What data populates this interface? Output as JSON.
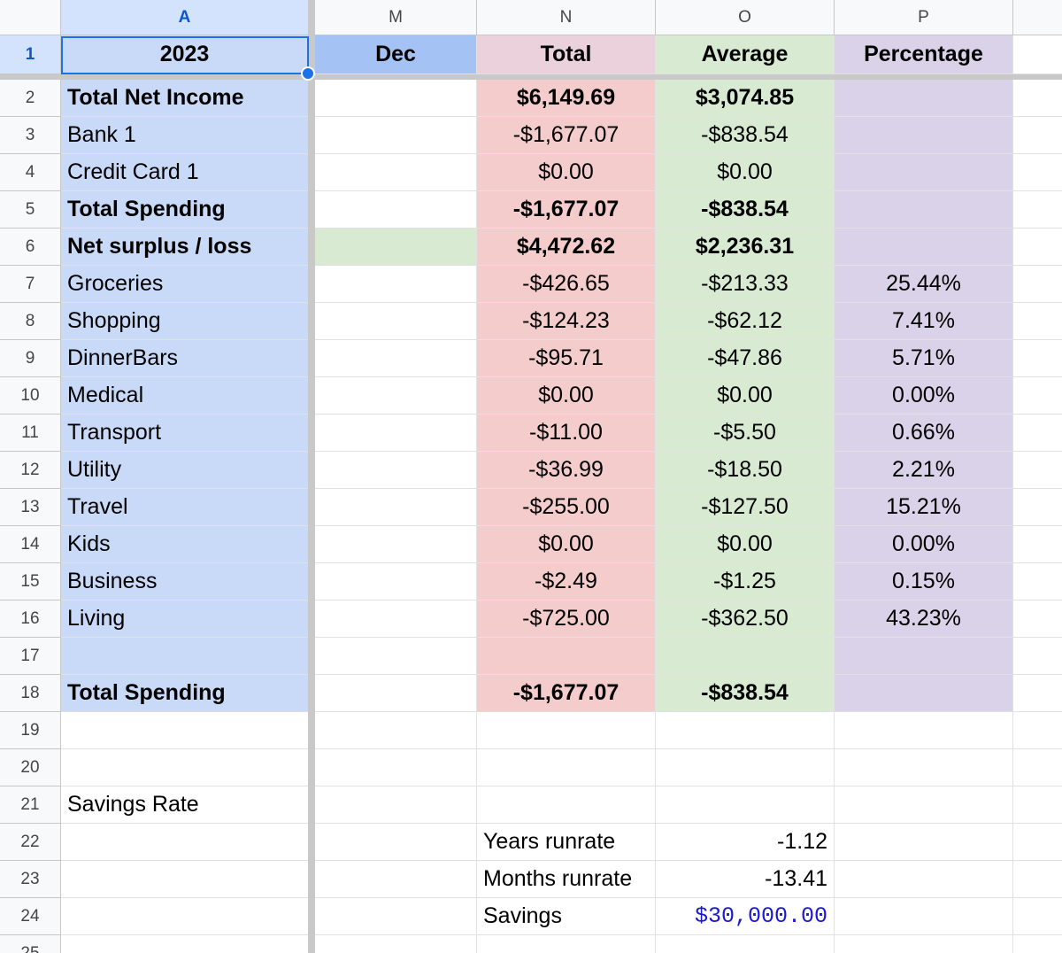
{
  "columns": [
    "A",
    "M",
    "N",
    "O",
    "P"
  ],
  "header_row": {
    "a": "2023",
    "m": "Dec",
    "n": "Total",
    "o": "Average",
    "p": "Percentage"
  },
  "rows": [
    {
      "n": "2",
      "a": "Total Net Income",
      "nn": "$6,149.69",
      "o": "$3,074.85",
      "p": "",
      "bold": true
    },
    {
      "n": "3",
      "a": "Bank 1",
      "nn": "-$1,677.07",
      "o": "-$838.54",
      "p": ""
    },
    {
      "n": "4",
      "a": "Credit Card 1",
      "nn": "$0.00",
      "o": "$0.00",
      "p": ""
    },
    {
      "n": "5",
      "a": "Total Spending",
      "nn": "-$1,677.07",
      "o": "-$838.54",
      "p": "",
      "bold": true
    },
    {
      "n": "6",
      "a": "Net surplus / loss",
      "nn": "$4,472.62",
      "o": "$2,236.31",
      "p": "",
      "bold": true
    },
    {
      "n": "7",
      "a": "Groceries",
      "nn": "-$426.65",
      "o": "-$213.33",
      "p": "25.44%"
    },
    {
      "n": "8",
      "a": "Shopping",
      "nn": "-$124.23",
      "o": "-$62.12",
      "p": "7.41%"
    },
    {
      "n": "9",
      "a": "DinnerBars",
      "nn": "-$95.71",
      "o": "-$47.86",
      "p": "5.71%"
    },
    {
      "n": "10",
      "a": "Medical",
      "nn": "$0.00",
      "o": "$0.00",
      "p": "0.00%"
    },
    {
      "n": "11",
      "a": "Transport",
      "nn": "-$11.00",
      "o": "-$5.50",
      "p": "0.66%"
    },
    {
      "n": "12",
      "a": "Utility",
      "nn": "-$36.99",
      "o": "-$18.50",
      "p": "2.21%"
    },
    {
      "n": "13",
      "a": "Travel",
      "nn": "-$255.00",
      "o": "-$127.50",
      "p": "15.21%"
    },
    {
      "n": "14",
      "a": "Kids",
      "nn": "$0.00",
      "o": "$0.00",
      "p": "0.00%"
    },
    {
      "n": "15",
      "a": "Business",
      "nn": "-$2.49",
      "o": "-$1.25",
      "p": "0.15%"
    },
    {
      "n": "16",
      "a": "Living",
      "nn": "-$725.00",
      "o": "-$362.50",
      "p": "43.23%"
    },
    {
      "n": "17",
      "a": "",
      "nn": "",
      "o": "",
      "p": ""
    },
    {
      "n": "18",
      "a": "Total Spending",
      "nn": "-$1,677.07",
      "o": "-$838.54",
      "p": "",
      "bold": true
    }
  ],
  "extra_rows": [
    {
      "n": "19",
      "a": "",
      "nn": "",
      "o": ""
    },
    {
      "n": "20",
      "a": "",
      "nn": "",
      "o": ""
    },
    {
      "n": "21",
      "a": "Savings Rate",
      "nn": "",
      "o": ""
    },
    {
      "n": "22",
      "a": "",
      "nn": "Years runrate",
      "o": "-1.12"
    },
    {
      "n": "23",
      "a": "",
      "nn": "Months runrate",
      "o": "-13.41"
    },
    {
      "n": "24",
      "a": "",
      "nn": "Savings",
      "o": "$30,000.00",
      "mono": true
    },
    {
      "n": "25",
      "a": "",
      "nn": "",
      "o": ""
    }
  ],
  "colors": {
    "selection": "#1a73e8",
    "label_fill": "#c9daf8",
    "total_fill": "#f4cccc",
    "average_fill": "#d9ead3",
    "percent_fill": "#d9d2e9"
  }
}
